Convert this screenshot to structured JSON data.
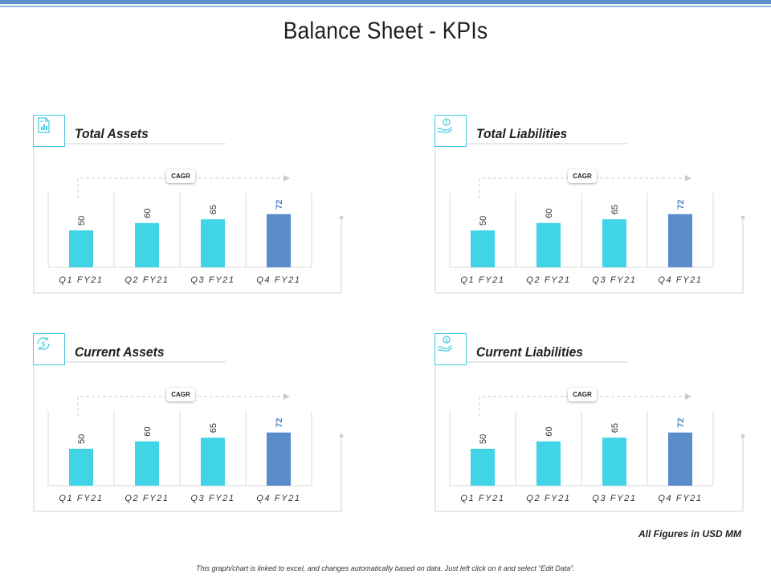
{
  "page": {
    "title": "Balance Sheet - KPIs",
    "units_note": "All Figures in USD MM",
    "footnote": "This graph/chart is linked to excel, and changes automatically based on data. Just left click on it and select “Edit Data”."
  },
  "colors": {
    "bar": "#41d3e6",
    "highlight": "#5a8ccc",
    "accent": "#41c9e0"
  },
  "panels": [
    {
      "title": "Total Assets",
      "icon": "document-chart-icon",
      "cagr_label": "CAGR"
    },
    {
      "title": "Total Liabilities",
      "icon": "hand-money-bag-icon",
      "cagr_label": "CAGR"
    },
    {
      "title": "Current Assets",
      "icon": "dollar-cycle-icon",
      "cagr_label": "CAGR"
    },
    {
      "title": "Current Liabilities",
      "icon": "hand-dollar-coin-icon",
      "cagr_label": "CAGR"
    }
  ],
  "chart_data": [
    {
      "type": "bar",
      "title": "Total Assets",
      "categories": [
        "Q1 FY21",
        "Q2 FY21",
        "Q3 FY21",
        "Q4 FY21"
      ],
      "values": [
        50,
        60,
        65,
        72
      ],
      "highlight_index": 3,
      "ylim": [
        0,
        100
      ],
      "annotation": "CAGR"
    },
    {
      "type": "bar",
      "title": "Total Liabilities",
      "categories": [
        "Q1 FY21",
        "Q2 FY21",
        "Q3 FY21",
        "Q4 FY21"
      ],
      "values": [
        50,
        60,
        65,
        72
      ],
      "highlight_index": 3,
      "ylim": [
        0,
        100
      ],
      "annotation": "CAGR"
    },
    {
      "type": "bar",
      "title": "Current Assets",
      "categories": [
        "Q1 FY21",
        "Q2 FY21",
        "Q3 FY21",
        "Q4 FY21"
      ],
      "values": [
        50,
        60,
        65,
        72
      ],
      "highlight_index": 3,
      "ylim": [
        0,
        100
      ],
      "annotation": "CAGR"
    },
    {
      "type": "bar",
      "title": "Current Liabilities",
      "categories": [
        "Q1 FY21",
        "Q2 FY21",
        "Q3 FY21",
        "Q4 FY21"
      ],
      "values": [
        50,
        60,
        65,
        72
      ],
      "highlight_index": 3,
      "ylim": [
        0,
        100
      ],
      "annotation": "CAGR"
    }
  ]
}
